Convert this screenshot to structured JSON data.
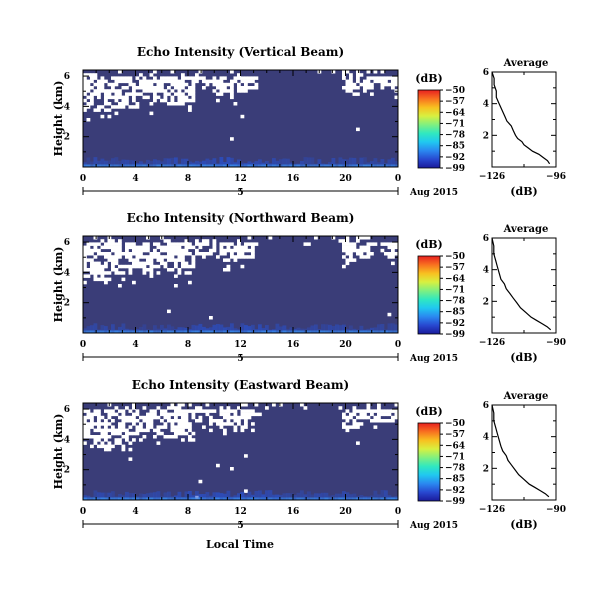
{
  "figure": {
    "x_ticks": [
      "0",
      "4",
      "8",
      "12",
      "16",
      "20",
      "0"
    ],
    "day_label": "5",
    "date_label": "Aug 2015",
    "xlabel": "Local Time",
    "ylabel": "Height (km)",
    "colorbar_unit": "(dB)",
    "colorbar_ticks": [
      "-50",
      "-57",
      "-64",
      "-71",
      "-78",
      "-85",
      "-92",
      "-99"
    ],
    "colorscale": [
      "#1a1a9a",
      "#2848d0",
      "#2a88f0",
      "#20c8f0",
      "#30e8c0",
      "#80f080",
      "#d8f040",
      "#f8c020",
      "#f87020",
      "#e82020"
    ],
    "background_color": "#3a3d78",
    "avg_title": "Average",
    "avg_xlabel": "(dB)"
  },
  "chart_data": [
    {
      "type": "heatmap",
      "title": "Echo Intensity (Vertical Beam)",
      "xlabel": "",
      "ylabel": "Height (km)",
      "x_ticks": [
        "0",
        "4",
        "8",
        "12",
        "16",
        "20",
        "0"
      ],
      "y_ticks": [
        "6",
        "4",
        "2"
      ],
      "colorbar": {
        "label": "(dB)",
        "ticks": [
          -50,
          -57,
          -64,
          -71,
          -78,
          -85,
          -92,
          -99
        ]
      },
      "average": {
        "title": "Average",
        "xlabel": "(dB)",
        "x_ticks": [
          "-126",
          "-96"
        ],
        "xlim": [
          -126,
          -96
        ],
        "y_ticks": [
          "6",
          "4",
          "2"
        ],
        "ylim": [
          0,
          6
        ],
        "profile": [
          [
            -99,
            0.2
          ],
          [
            -100,
            0.4
          ],
          [
            -102,
            0.6
          ],
          [
            -104,
            0.8
          ],
          [
            -107,
            1.0
          ],
          [
            -109,
            1.2
          ],
          [
            -111,
            1.4
          ],
          [
            -112,
            1.6
          ],
          [
            -114,
            1.8
          ],
          [
            -115,
            2.0
          ],
          [
            -116,
            2.3
          ],
          [
            -117,
            2.6
          ],
          [
            -119,
            2.9
          ],
          [
            -120,
            3.2
          ],
          [
            -121,
            3.5
          ],
          [
            -122,
            3.8
          ],
          [
            -123,
            4.1
          ],
          [
            -124,
            4.4
          ],
          [
            -124,
            4.8
          ],
          [
            -125,
            5.2
          ],
          [
            -125,
            5.6
          ],
          [
            -126,
            6.0
          ]
        ]
      }
    },
    {
      "type": "heatmap",
      "title": "Echo Intensity (Northward Beam)",
      "xlabel": "",
      "ylabel": "Height (km)",
      "x_ticks": [
        "0",
        "4",
        "8",
        "12",
        "16",
        "20",
        "0"
      ],
      "y_ticks": [
        "6",
        "4",
        "2"
      ],
      "colorbar": {
        "label": "(dB)",
        "ticks": [
          -50,
          -57,
          -64,
          -71,
          -78,
          -85,
          -92,
          -99
        ]
      },
      "average": {
        "title": "Average",
        "xlabel": "(dB)",
        "x_ticks": [
          "-126",
          "-90"
        ],
        "xlim": [
          -126,
          -90
        ],
        "y_ticks": [
          "6",
          "4",
          "2"
        ],
        "ylim": [
          0,
          6
        ],
        "profile": [
          [
            -93,
            0.2
          ],
          [
            -95,
            0.4
          ],
          [
            -98,
            0.6
          ],
          [
            -101,
            0.8
          ],
          [
            -104,
            1.0
          ],
          [
            -107,
            1.3
          ],
          [
            -110,
            1.6
          ],
          [
            -112,
            1.9
          ],
          [
            -114,
            2.2
          ],
          [
            -116,
            2.5
          ],
          [
            -118,
            2.8
          ],
          [
            -119,
            3.1
          ],
          [
            -121,
            3.4
          ],
          [
            -122,
            3.8
          ],
          [
            -123,
            4.2
          ],
          [
            -124,
            4.6
          ],
          [
            -125,
            5.0
          ],
          [
            -125,
            5.5
          ],
          [
            -126,
            6.0
          ]
        ]
      }
    },
    {
      "type": "heatmap",
      "title": "Echo Intensity (Eastward Beam)",
      "xlabel": "Local Time",
      "ylabel": "Height (km)",
      "x_ticks": [
        "0",
        "4",
        "8",
        "12",
        "16",
        "20",
        "0"
      ],
      "y_ticks": [
        "6",
        "4",
        "2"
      ],
      "colorbar": {
        "label": "(dB)",
        "ticks": [
          -50,
          -57,
          -64,
          -71,
          -78,
          -85,
          -92,
          -99
        ]
      },
      "average": {
        "title": "Average",
        "xlabel": "(dB)",
        "x_ticks": [
          "-126",
          "-90"
        ],
        "xlim": [
          -126,
          -90
        ],
        "y_ticks": [
          "6",
          "4",
          "2"
        ],
        "ylim": [
          0,
          6
        ],
        "profile": [
          [
            -94,
            0.2
          ],
          [
            -96,
            0.4
          ],
          [
            -99,
            0.6
          ],
          [
            -102,
            0.8
          ],
          [
            -105,
            1.0
          ],
          [
            -108,
            1.3
          ],
          [
            -111,
            1.6
          ],
          [
            -113,
            1.9
          ],
          [
            -115,
            2.2
          ],
          [
            -117,
            2.5
          ],
          [
            -118,
            2.8
          ],
          [
            -120,
            3.1
          ],
          [
            -121,
            3.4
          ],
          [
            -122,
            3.8
          ],
          [
            -123,
            4.2
          ],
          [
            -124,
            4.6
          ],
          [
            -125,
            5.0
          ],
          [
            -125,
            5.5
          ],
          [
            -126,
            6.0
          ]
        ]
      }
    }
  ]
}
